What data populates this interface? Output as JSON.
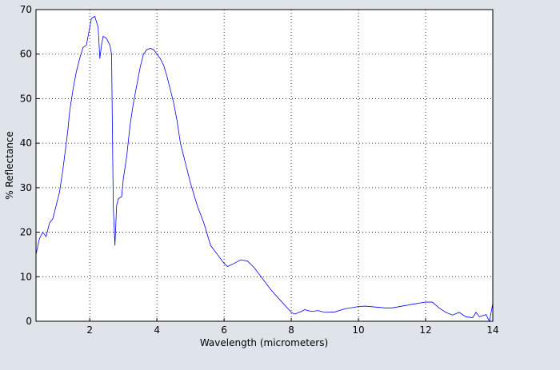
{
  "chart_data": {
    "type": "line",
    "xlabel": "Wavelength (micrometers)",
    "ylabel": "% Reflectance",
    "x": [
      0.4,
      0.5,
      0.6,
      0.7,
      0.8,
      0.9,
      1.0,
      1.1,
      1.2,
      1.3,
      1.35,
      1.4,
      1.5,
      1.6,
      1.7,
      1.8,
      1.9,
      2.0,
      2.05,
      2.15,
      2.25,
      2.3,
      2.35,
      2.4,
      2.5,
      2.6,
      2.65,
      2.7,
      2.75,
      2.8,
      2.85,
      2.95,
      3.0,
      3.1,
      3.2,
      3.3,
      3.4,
      3.5,
      3.6,
      3.7,
      3.8,
      3.9,
      4.0,
      4.1,
      4.2,
      4.3,
      4.4,
      4.5,
      4.6,
      4.7,
      4.8,
      5.0,
      5.2,
      5.4,
      5.6,
      5.8,
      6.0,
      6.1,
      6.3,
      6.5,
      6.7,
      6.9,
      7.1,
      7.4,
      7.7,
      8.0,
      8.1,
      8.3,
      8.4,
      8.6,
      8.8,
      9.0,
      9.3,
      9.6,
      10.0,
      10.2,
      10.5,
      10.8,
      11.0,
      11.3,
      11.6,
      12.0,
      12.2,
      12.4,
      12.6,
      12.8,
      13.0,
      13.2,
      13.4,
      13.5,
      13.6,
      13.8,
      13.9,
      14.0
    ],
    "series": [
      {
        "name": "Reflectance",
        "color": "#0000ff",
        "values": [
          15,
          18.5,
          20,
          19,
          22,
          23,
          26,
          29,
          34,
          40,
          43,
          47,
          52,
          56,
          59,
          61.5,
          62,
          66,
          68,
          68.5,
          66,
          59,
          62,
          64,
          63.5,
          62,
          60,
          26,
          17,
          26,
          27.5,
          28,
          32,
          37,
          44,
          49,
          53,
          57,
          60,
          61,
          61.3,
          61,
          60,
          59,
          57.5,
          55,
          52,
          49,
          45,
          40,
          37,
          31,
          26,
          22,
          17,
          15,
          13,
          12.3,
          13,
          13.8,
          13.5,
          12,
          10,
          7,
          4.5,
          2,
          1.6,
          2.2,
          2.6,
          2.2,
          2.4,
          2,
          2.1,
          2.8,
          3.3,
          3.4,
          3.2,
          3,
          3,
          3.4,
          3.8,
          4.3,
          4.3,
          3,
          2,
          1.4,
          2,
          1,
          0.8,
          2,
          1,
          1.5,
          0,
          4
        ]
      }
    ],
    "xlim": [
      0.4,
      14
    ],
    "ylim": [
      0,
      70
    ],
    "xticks": [
      2,
      4,
      6,
      8,
      10,
      12,
      14
    ],
    "yticks": [
      0,
      10,
      20,
      30,
      40,
      50,
      60,
      70
    ],
    "grid": true
  }
}
